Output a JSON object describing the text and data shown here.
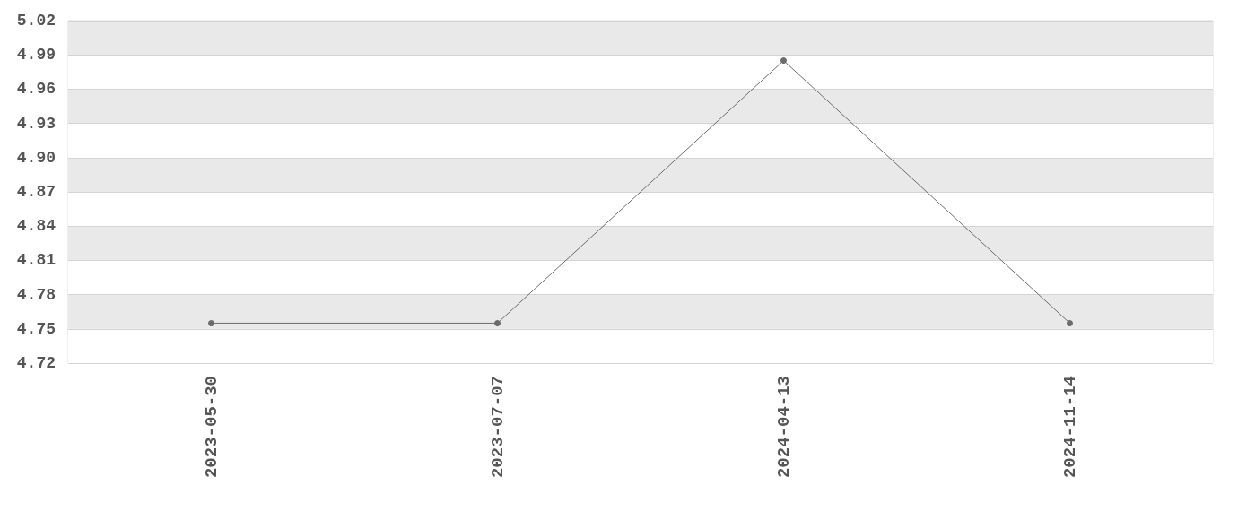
{
  "chart_data": {
    "type": "line",
    "categories": [
      "2023-05-30",
      "2023-07-07",
      "2024-04-13",
      "2024-11-14"
    ],
    "values": [
      4.755,
      4.755,
      4.985,
      4.755
    ],
    "color": "#6b6b6b",
    "ylim": [
      4.72,
      5.02
    ],
    "yticks": [
      4.72,
      4.75,
      4.78,
      4.81,
      4.84,
      4.87,
      {
        "value": 4.9,
        "label": "4.90"
      },
      4.93,
      4.96,
      4.99,
      5.02
    ],
    "grid": "y",
    "marker": "circle",
    "line_style": "solid"
  }
}
